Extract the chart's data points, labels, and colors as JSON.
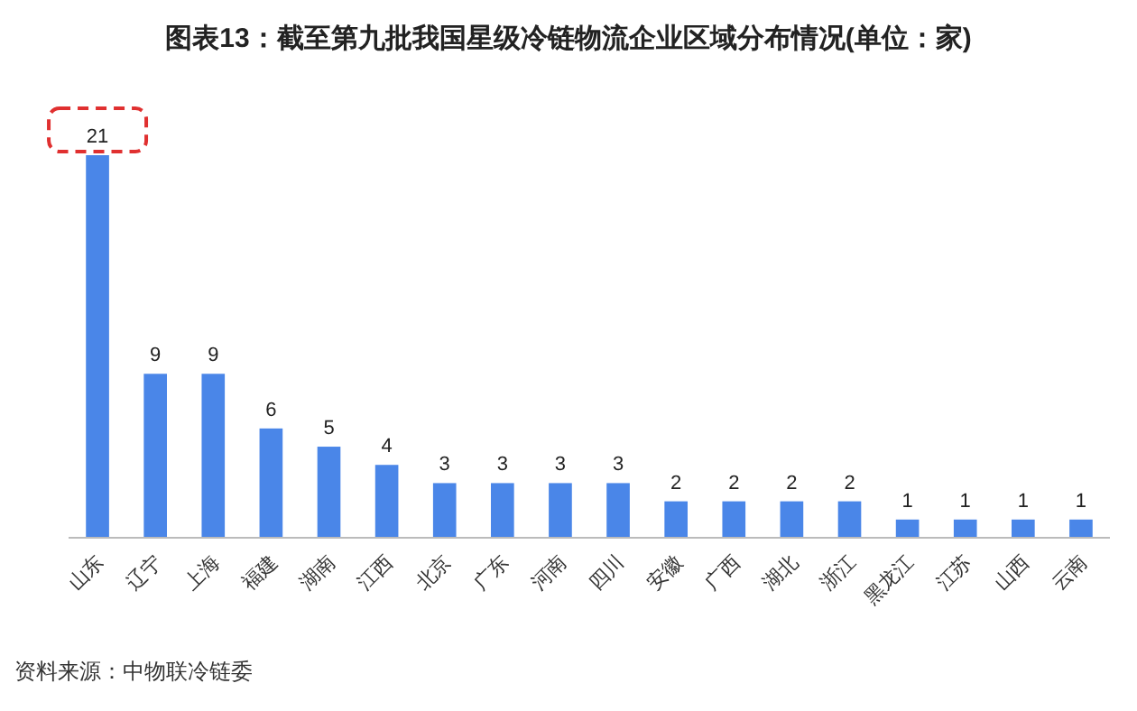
{
  "chart_data": {
    "type": "bar",
    "title": "图表13：截至第九批我国星级冷链物流企业区域分布情况(单位：家)",
    "categories": [
      "山东",
      "辽宁",
      "上海",
      "福建",
      "湖南",
      "江西",
      "北京",
      "广东",
      "河南",
      "四川",
      "安徽",
      "广西",
      "湖北",
      "浙江",
      "黑龙江",
      "江苏",
      "山西",
      "云南"
    ],
    "values": [
      21,
      9,
      9,
      6,
      5,
      4,
      3,
      3,
      3,
      3,
      2,
      2,
      2,
      2,
      1,
      1,
      1,
      1
    ],
    "color": "#4a86e8",
    "data_labels": true,
    "annotations": [
      "资料来源：中物联冷链委"
    ]
  }
}
